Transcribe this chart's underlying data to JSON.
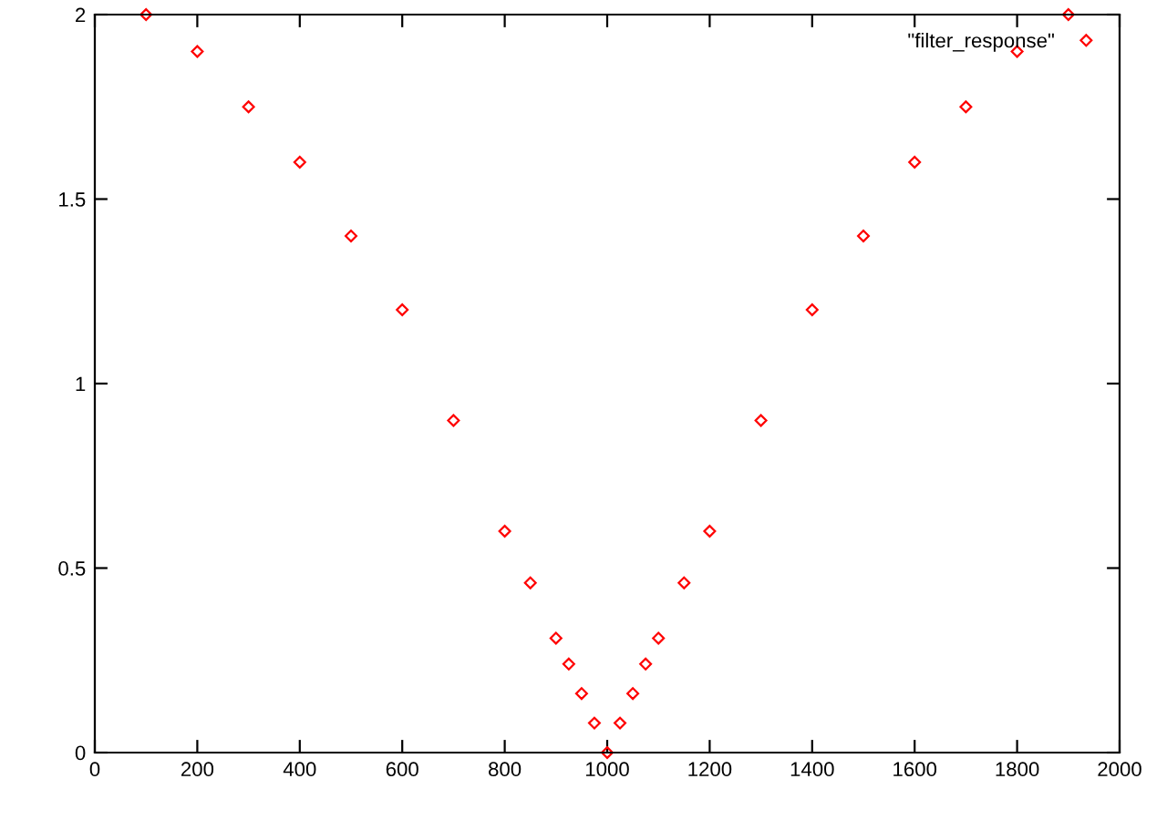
{
  "chart_data": {
    "type": "scatter",
    "x": [
      100,
      200,
      300,
      400,
      500,
      600,
      700,
      800,
      850,
      900,
      925,
      950,
      975,
      1000,
      1025,
      1050,
      1075,
      1100,
      1150,
      1200,
      1300,
      1400,
      1500,
      1600,
      1700,
      1800,
      1900
    ],
    "series": [
      {
        "name": "\"filter_response\"",
        "color": "#ff0000",
        "values": [
          2.0,
          1.9,
          1.75,
          1.6,
          1.4,
          1.2,
          0.9,
          0.6,
          0.46,
          0.31,
          0.24,
          0.16,
          0.08,
          0.0,
          0.08,
          0.16,
          0.24,
          0.31,
          0.46,
          0.6,
          0.9,
          1.2,
          1.4,
          1.6,
          1.75,
          1.9,
          2.0
        ]
      }
    ],
    "xlim": [
      0,
      2000
    ],
    "xticks": [
      0,
      200,
      400,
      600,
      800,
      1000,
      1200,
      1400,
      1600,
      1800,
      2000
    ],
    "ylim": [
      0,
      2
    ],
    "yticks": [
      0,
      0.5,
      1,
      1.5,
      2
    ],
    "marker": "diamond",
    "legend": "top right",
    "grid": false
  }
}
